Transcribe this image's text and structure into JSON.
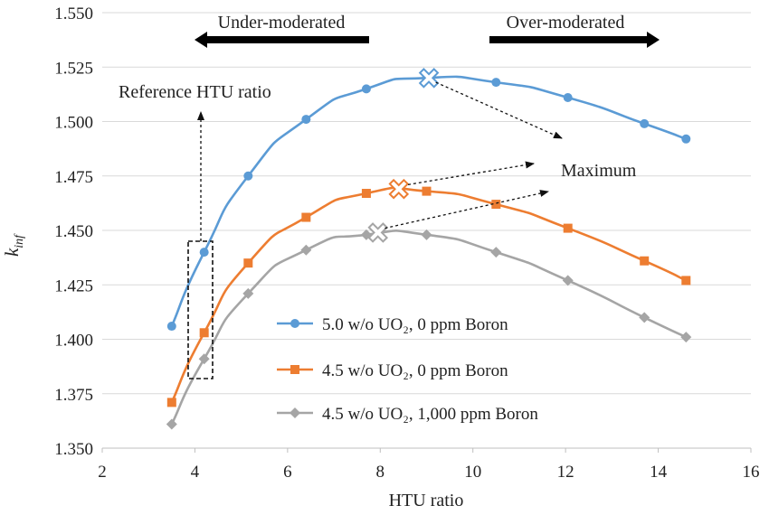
{
  "chart_data": {
    "type": "line",
    "xlabel": "HTU ratio",
    "ylabel_base": "k",
    "ylabel_sub": "inf",
    "xlim": [
      2,
      16
    ],
    "ylim": [
      1.35,
      1.55
    ],
    "xticks": [
      "2",
      "4",
      "6",
      "8",
      "10",
      "12",
      "14",
      "16"
    ],
    "yticks": [
      "1.350",
      "1.375",
      "1.400",
      "1.425",
      "1.450",
      "1.475",
      "1.500",
      "1.525",
      "1.550"
    ],
    "grid": "horizontal",
    "legend_position": "lower-center",
    "series": [
      {
        "name": "5.0 w/o UO₂, 0 ppm Boron",
        "color": "#5B9BD5",
        "marker": "circle",
        "x": [
          3.5,
          4.2,
          5.15,
          6.4,
          7.7,
          9.0,
          10.5,
          12.05,
          13.7,
          14.6
        ],
        "y": [
          1.406,
          1.44,
          1.475,
          1.501,
          1.515,
          1.52,
          1.518,
          1.511,
          1.499,
          1.492
        ]
      },
      {
        "name": "4.5 w/o UO₂, 0 ppm Boron",
        "color": "#ED7D31",
        "marker": "square",
        "x": [
          3.5,
          4.2,
          5.15,
          6.4,
          7.7,
          9.0,
          10.5,
          12.05,
          13.7,
          14.6
        ],
        "y": [
          1.371,
          1.403,
          1.435,
          1.456,
          1.467,
          1.468,
          1.462,
          1.451,
          1.436,
          1.427
        ]
      },
      {
        "name": "4.5 w/o UO₂, 1,000 ppm Boron",
        "color": "#A5A5A5",
        "marker": "diamond",
        "x": [
          3.5,
          4.2,
          5.15,
          6.4,
          7.7,
          9.0,
          10.5,
          12.05,
          13.7,
          14.6
        ],
        "y": [
          1.361,
          1.391,
          1.421,
          1.441,
          1.448,
          1.448,
          1.44,
          1.427,
          1.41,
          1.401
        ]
      }
    ],
    "maxima": [
      {
        "x": 9.05,
        "y": 1.52
      },
      {
        "x": 8.4,
        "y": 1.469
      },
      {
        "x": 7.95,
        "y": 1.449
      }
    ],
    "annotations": {
      "under_moderated": "Under-moderated",
      "over_moderated": "Over-moderated",
      "reference": "Reference HTU ratio",
      "maximum": "Maximum"
    }
  }
}
